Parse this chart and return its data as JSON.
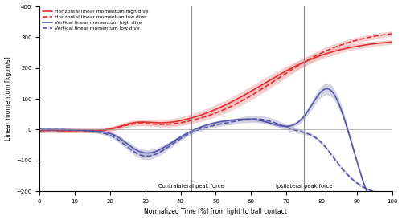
{
  "xlabel": "Normalized Time [%] from light to ball contact",
  "ylabel": "Linear momentum [kg.m/s]",
  "ylim": [
    -200,
    400
  ],
  "xlim": [
    0,
    100
  ],
  "yticks": [
    -200,
    -100,
    0,
    100,
    200,
    300,
    400
  ],
  "xticks": [
    0,
    10,
    20,
    30,
    40,
    50,
    60,
    70,
    80,
    90,
    100
  ],
  "contralateral_vline": 43,
  "ipsilateral_vline": 75,
  "contralateral_label": "Contralateral peak force",
  "ipsilateral_label": "Ipsilateral peak force",
  "legend": [
    "Horizontal linear momentum high dive",
    "Horizontal linear momentum low dive",
    "Vertical linear momentum high dive",
    "Vertical linear momentum low dive"
  ],
  "red_color": "#e03030",
  "blue_color": "#5555aa",
  "red_fill": "#f0b0b0",
  "blue_fill": "#aaaacc"
}
